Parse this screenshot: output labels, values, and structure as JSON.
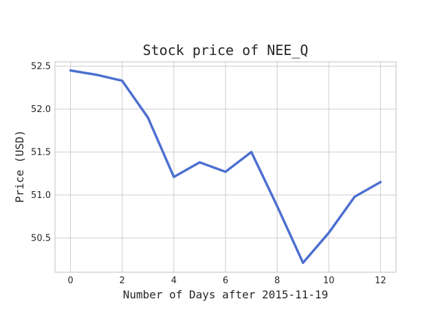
{
  "chart_data": {
    "type": "line",
    "title": "Stock price of NEE_Q",
    "xlabel": "Number of Days after 2015-11-19",
    "ylabel": "Price (USD)",
    "xlim": [
      -0.6,
      12.6
    ],
    "ylim": [
      50.1,
      52.55
    ],
    "x_ticks": [
      0,
      2,
      4,
      6,
      8,
      10,
      12
    ],
    "y_ticks": [
      50.5,
      51.0,
      51.5,
      52.0,
      52.5
    ],
    "y_tick_labels": [
      "50.5",
      "51.0",
      "51.5",
      "52.0",
      "52.5"
    ],
    "grid": true,
    "series": [
      {
        "color": "#4c6fd0",
        "x": [
          0,
          1,
          2,
          3,
          4,
          5,
          6,
          7,
          8,
          9,
          10,
          11,
          12
        ],
        "y": [
          52.45,
          52.4,
          52.33,
          51.9,
          51.21,
          51.38,
          51.27,
          51.5,
          50.87,
          50.21,
          50.56,
          50.98,
          51.15
        ]
      }
    ]
  }
}
